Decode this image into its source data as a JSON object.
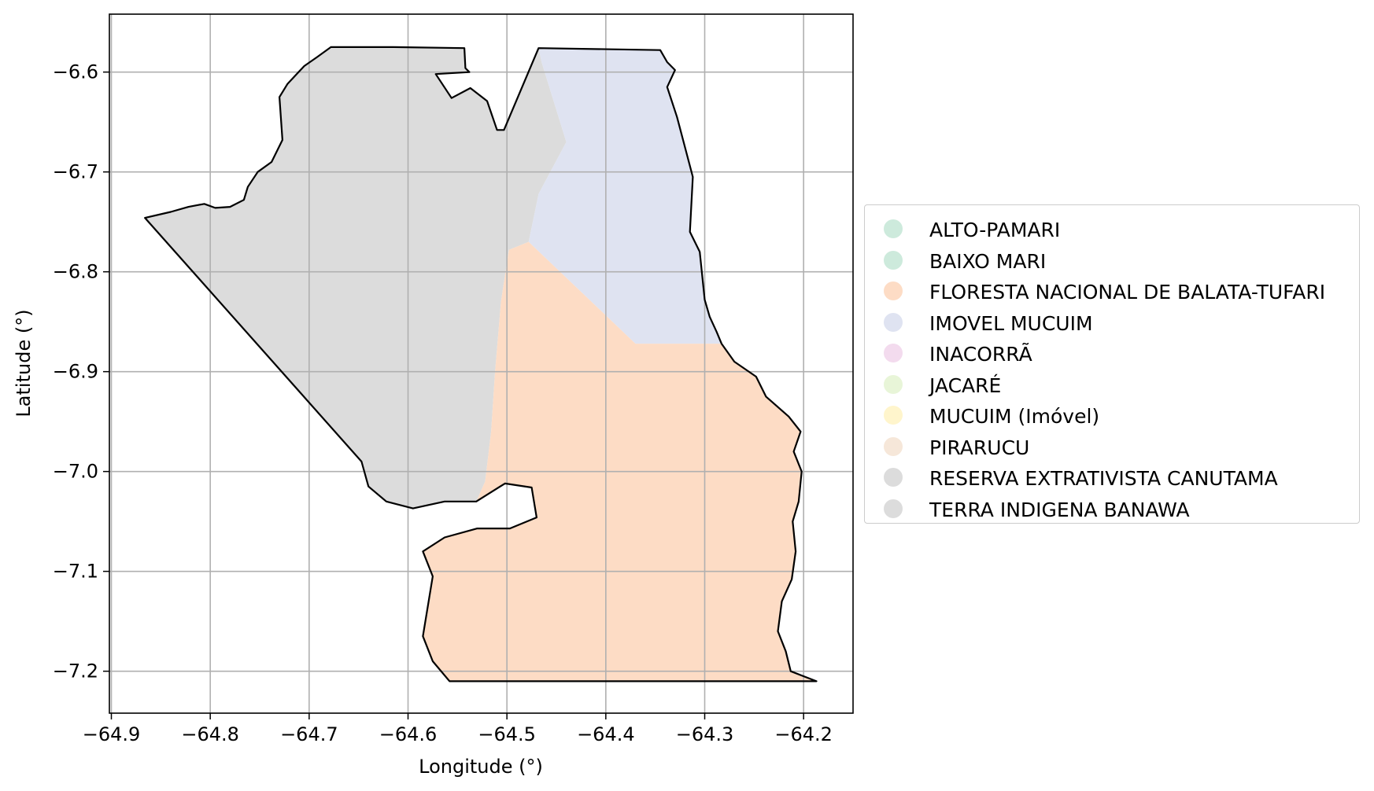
{
  "chart_data": {
    "type": "map",
    "xlabel": "Longitude (°)",
    "ylabel": "Latitude (°)",
    "xlim": [
      -64.902,
      -64.15
    ],
    "ylim": [
      -7.242,
      -6.542
    ],
    "xticks": [
      -64.9,
      -64.8,
      -64.7,
      -64.6,
      -64.5,
      -64.4,
      -64.3,
      -64.2
    ],
    "yticks": [
      -6.6,
      -6.7,
      -6.8,
      -6.9,
      -7.0,
      -7.1,
      -7.2
    ],
    "xtick_labels": [
      "−64.9",
      "−64.8",
      "−64.7",
      "−64.6",
      "−64.5",
      "−64.4",
      "−64.3",
      "−64.2"
    ],
    "ytick_labels": [
      "−6.6",
      "−6.7",
      "−6.8",
      "−6.9",
      "−7.0",
      "−7.1",
      "−7.2"
    ],
    "grid": true,
    "legend_position": "right",
    "legend": [
      {
        "name": "ALTO-PAMARI",
        "color": "#cdeadc"
      },
      {
        "name": "BAIXO MARI",
        "color": "#cdeadc"
      },
      {
        "name": "FLORESTA NACIONAL DE BALATA-TUFARI",
        "color": "#fddcc5"
      },
      {
        "name": "IMOVEL MUCUIM",
        "color": "#dfe3f1"
      },
      {
        "name": "INACORRÃ",
        "color": "#f3dbee"
      },
      {
        "name": "JACARÉ",
        "color": "#e8f5d8"
      },
      {
        "name": "MUCUIM (Imóvel)",
        "color": "#fff5cc"
      },
      {
        "name": "PIRARUCU",
        "color": "#f6e7d9"
      },
      {
        "name": "RESERVA EXTRATIVISTA CANUTAMA",
        "color": "#dcdcdc"
      },
      {
        "name": "TERRA INDIGENA BANAWA",
        "color": "#dcdcdc"
      }
    ],
    "regions": [
      {
        "name": "RESERVA EXTRATIVISTA CANUTAMA",
        "fill": "#dcdcdc",
        "coords": [
          [
            -64.866,
            -6.746
          ],
          [
            -64.84,
            -6.74
          ],
          [
            -64.822,
            -6.735
          ],
          [
            -64.806,
            -6.732
          ],
          [
            -64.795,
            -6.736
          ],
          [
            -64.78,
            -6.735
          ],
          [
            -64.766,
            -6.728
          ],
          [
            -64.762,
            -6.715
          ],
          [
            -64.752,
            -6.7
          ],
          [
            -64.738,
            -6.69
          ],
          [
            -64.727,
            -6.668
          ],
          [
            -64.73,
            -6.625
          ],
          [
            -64.722,
            -6.612
          ],
          [
            -64.705,
            -6.594
          ],
          [
            -64.692,
            -6.585
          ],
          [
            -64.678,
            -6.575
          ],
          [
            -64.615,
            -6.575
          ],
          [
            -64.543,
            -6.576
          ],
          [
            -64.542,
            -6.596
          ],
          [
            -64.538,
            -6.6
          ],
          [
            -64.572,
            -6.602
          ],
          [
            -64.556,
            -6.626
          ],
          [
            -64.537,
            -6.616
          ],
          [
            -64.52,
            -6.629
          ],
          [
            -64.51,
            -6.658
          ],
          [
            -64.503,
            -6.658
          ],
          [
            -64.468,
            -6.576
          ],
          [
            -64.465,
            -6.59
          ],
          [
            -64.44,
            -6.67
          ],
          [
            -64.468,
            -6.722
          ],
          [
            -64.478,
            -6.77
          ],
          [
            -64.498,
            -6.778
          ],
          [
            -64.506,
            -6.83
          ],
          [
            -64.512,
            -6.9
          ],
          [
            -64.516,
            -6.96
          ],
          [
            -64.522,
            -7.01
          ],
          [
            -64.531,
            -7.03
          ],
          [
            -64.563,
            -7.03
          ],
          [
            -64.595,
            -7.037
          ],
          [
            -64.622,
            -7.03
          ],
          [
            -64.64,
            -7.015
          ],
          [
            -64.647,
            -6.99
          ],
          [
            -64.866,
            -6.746
          ]
        ]
      },
      {
        "name": "IMOVEL MUCUIM",
        "fill": "#dfe3f1",
        "coords": [
          [
            -64.468,
            -6.576
          ],
          [
            -64.345,
            -6.578
          ],
          [
            -64.338,
            -6.59
          ],
          [
            -64.33,
            -6.598
          ],
          [
            -64.338,
            -6.615
          ],
          [
            -64.328,
            -6.645
          ],
          [
            -64.312,
            -6.705
          ],
          [
            -64.315,
            -6.76
          ],
          [
            -64.305,
            -6.78
          ],
          [
            -64.3,
            -6.828
          ],
          [
            -64.295,
            -6.845
          ],
          [
            -64.288,
            -6.86
          ],
          [
            -64.283,
            -6.872
          ],
          [
            -64.37,
            -6.872
          ],
          [
            -64.478,
            -6.77
          ],
          [
            -64.468,
            -6.722
          ],
          [
            -64.44,
            -6.67
          ],
          [
            -64.465,
            -6.59
          ],
          [
            -64.468,
            -6.576
          ]
        ]
      },
      {
        "name": "FLORESTA NACIONAL DE BALATA-TUFARI",
        "fill": "#fddcc5",
        "coords": [
          [
            -64.478,
            -6.77
          ],
          [
            -64.37,
            -6.872
          ],
          [
            -64.283,
            -6.872
          ],
          [
            -64.27,
            -6.89
          ],
          [
            -64.248,
            -6.905
          ],
          [
            -64.238,
            -6.925
          ],
          [
            -64.215,
            -6.945
          ],
          [
            -64.203,
            -6.96
          ],
          [
            -64.21,
            -6.98
          ],
          [
            -64.202,
            -7.0
          ],
          [
            -64.205,
            -7.03
          ],
          [
            -64.211,
            -7.05
          ],
          [
            -64.208,
            -7.08
          ],
          [
            -64.212,
            -7.108
          ],
          [
            -64.222,
            -7.13
          ],
          [
            -64.226,
            -7.16
          ],
          [
            -64.218,
            -7.18
          ],
          [
            -64.213,
            -7.2
          ],
          [
            -64.187,
            -7.21
          ],
          [
            -64.558,
            -7.21
          ],
          [
            -64.575,
            -7.19
          ],
          [
            -64.585,
            -7.165
          ],
          [
            -64.575,
            -7.105
          ],
          [
            -64.585,
            -7.08
          ],
          [
            -64.563,
            -7.066
          ],
          [
            -64.53,
            -7.057
          ],
          [
            -64.497,
            -7.057
          ],
          [
            -64.47,
            -7.046
          ],
          [
            -64.475,
            -7.016
          ],
          [
            -64.502,
            -7.012
          ],
          [
            -64.531,
            -7.03
          ],
          [
            -64.522,
            -7.01
          ],
          [
            -64.516,
            -6.96
          ],
          [
            -64.512,
            -6.9
          ],
          [
            -64.506,
            -6.83
          ],
          [
            -64.498,
            -6.778
          ],
          [
            -64.478,
            -6.77
          ]
        ]
      }
    ],
    "outline": [
      [
        -64.866,
        -6.746
      ],
      [
        -64.84,
        -6.74
      ],
      [
        -64.822,
        -6.735
      ],
      [
        -64.806,
        -6.732
      ],
      [
        -64.795,
        -6.736
      ],
      [
        -64.78,
        -6.735
      ],
      [
        -64.766,
        -6.728
      ],
      [
        -64.762,
        -6.715
      ],
      [
        -64.752,
        -6.7
      ],
      [
        -64.738,
        -6.69
      ],
      [
        -64.727,
        -6.668
      ],
      [
        -64.73,
        -6.625
      ],
      [
        -64.722,
        -6.612
      ],
      [
        -64.705,
        -6.594
      ],
      [
        -64.692,
        -6.585
      ],
      [
        -64.678,
        -6.575
      ],
      [
        -64.615,
        -6.575
      ],
      [
        -64.543,
        -6.576
      ],
      [
        -64.542,
        -6.596
      ],
      [
        -64.538,
        -6.6
      ],
      [
        -64.572,
        -6.602
      ],
      [
        -64.556,
        -6.626
      ],
      [
        -64.537,
        -6.616
      ],
      [
        -64.52,
        -6.629
      ],
      [
        -64.51,
        -6.658
      ],
      [
        -64.503,
        -6.658
      ],
      [
        -64.468,
        -6.576
      ],
      [
        -64.345,
        -6.578
      ],
      [
        -64.338,
        -6.59
      ],
      [
        -64.33,
        -6.598
      ],
      [
        -64.338,
        -6.615
      ],
      [
        -64.328,
        -6.645
      ],
      [
        -64.312,
        -6.705
      ],
      [
        -64.315,
        -6.76
      ],
      [
        -64.305,
        -6.78
      ],
      [
        -64.3,
        -6.828
      ],
      [
        -64.295,
        -6.845
      ],
      [
        -64.288,
        -6.86
      ],
      [
        -64.283,
        -6.872
      ],
      [
        -64.27,
        -6.89
      ],
      [
        -64.248,
        -6.905
      ],
      [
        -64.238,
        -6.925
      ],
      [
        -64.215,
        -6.945
      ],
      [
        -64.203,
        -6.96
      ],
      [
        -64.21,
        -6.98
      ],
      [
        -64.202,
        -7.0
      ],
      [
        -64.205,
        -7.03
      ],
      [
        -64.211,
        -7.05
      ],
      [
        -64.208,
        -7.08
      ],
      [
        -64.212,
        -7.108
      ],
      [
        -64.222,
        -7.13
      ],
      [
        -64.226,
        -7.16
      ],
      [
        -64.218,
        -7.18
      ],
      [
        -64.213,
        -7.2
      ],
      [
        -64.187,
        -7.21
      ],
      [
        -64.558,
        -7.21
      ],
      [
        -64.575,
        -7.19
      ],
      [
        -64.585,
        -7.165
      ],
      [
        -64.575,
        -7.105
      ],
      [
        -64.585,
        -7.08
      ],
      [
        -64.563,
        -7.066
      ],
      [
        -64.53,
        -7.057
      ],
      [
        -64.497,
        -7.057
      ],
      [
        -64.47,
        -7.046
      ],
      [
        -64.475,
        -7.016
      ],
      [
        -64.502,
        -7.012
      ],
      [
        -64.531,
        -7.03
      ],
      [
        -64.563,
        -7.03
      ],
      [
        -64.595,
        -7.037
      ],
      [
        -64.622,
        -7.03
      ],
      [
        -64.64,
        -7.015
      ],
      [
        -64.647,
        -6.99
      ],
      [
        -64.866,
        -6.746
      ]
    ]
  }
}
